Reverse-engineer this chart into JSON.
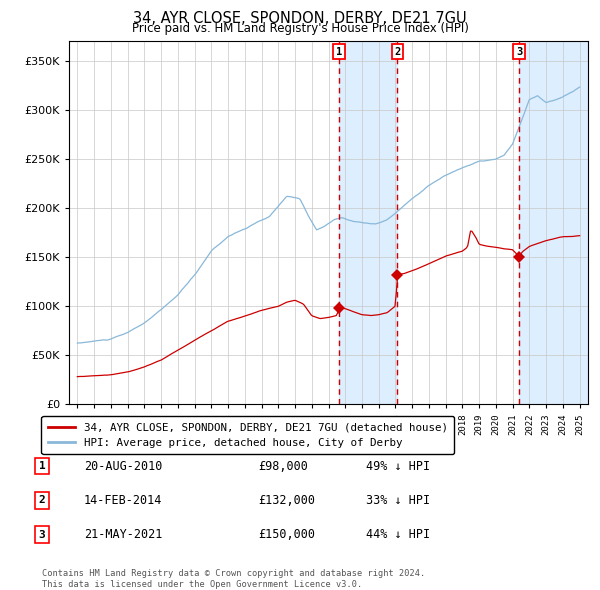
{
  "title": "34, AYR CLOSE, SPONDON, DERBY, DE21 7GU",
  "subtitle": "Price paid vs. HM Land Registry's House Price Index (HPI)",
  "hpi_color": "#89b8d9",
  "price_color": "#cc0000",
  "background_color": "#ffffff",
  "grid_color": "#c8c8c8",
  "shade_color": "#ddeeff",
  "ylim": [
    0,
    370000
  ],
  "yticks": [
    0,
    50000,
    100000,
    150000,
    200000,
    250000,
    300000,
    350000
  ],
  "ytick_labels": [
    "£0",
    "£50K",
    "£100K",
    "£150K",
    "£200K",
    "£250K",
    "£300K",
    "£350K"
  ],
  "sale_dates_decimal": [
    2010.635,
    2014.121,
    2021.384
  ],
  "sale_prices": [
    98000,
    132000,
    150000
  ],
  "sale_labels": [
    "1",
    "2",
    "3"
  ],
  "sale_info": [
    [
      "1",
      "20-AUG-2010",
      "£98,000",
      "49% ↓ HPI"
    ],
    [
      "2",
      "14-FEB-2014",
      "£132,000",
      "33% ↓ HPI"
    ],
    [
      "3",
      "21-MAY-2021",
      "£150,000",
      "44% ↓ HPI"
    ]
  ],
  "legend_line1": "34, AYR CLOSE, SPONDON, DERBY, DE21 7GU (detached house)",
  "legend_line2": "HPI: Average price, detached house, City of Derby",
  "footer1": "Contains HM Land Registry data © Crown copyright and database right 2024.",
  "footer2": "This data is licensed under the Open Government Licence v3.0.",
  "xmin": 1994.5,
  "xmax": 2025.5
}
